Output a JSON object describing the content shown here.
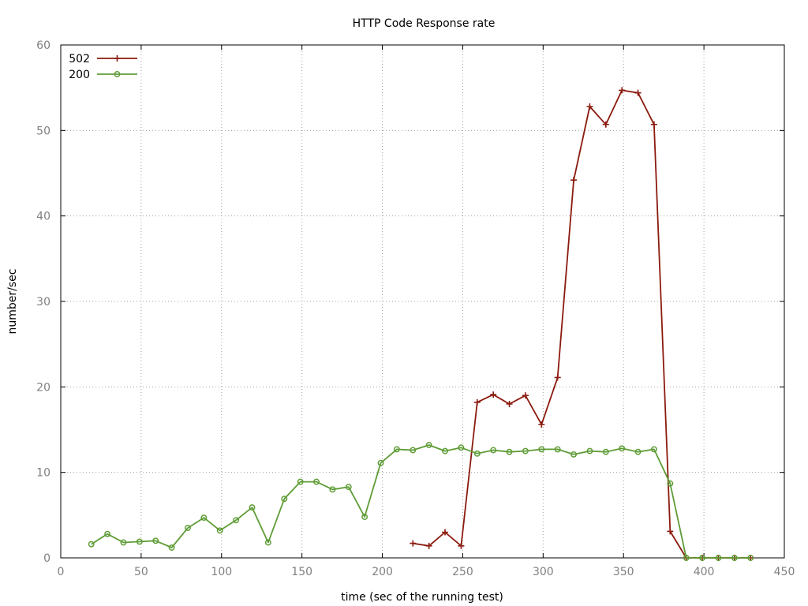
{
  "chart_data": {
    "type": "line",
    "title": "HTTP Code Response rate",
    "xlabel": "time (sec of the running test)",
    "ylabel": "number/sec",
    "xlim": [
      0,
      450
    ],
    "ylim": [
      0,
      60
    ],
    "xticks": [
      0,
      50,
      100,
      150,
      200,
      250,
      300,
      350,
      400,
      450
    ],
    "yticks": [
      0,
      10,
      20,
      30,
      40,
      50,
      60
    ],
    "grid": true,
    "legend_position": "top-left",
    "series": [
      {
        "name": "502",
        "color": "#8b1a0e",
        "marker": "plus",
        "x": [
          219,
          229,
          239,
          249,
          259,
          269,
          279,
          289,
          299,
          309,
          319,
          329,
          339,
          349,
          359,
          369,
          379,
          389,
          399,
          409,
          419,
          429
        ],
        "y": [
          1.7,
          1.4,
          3.0,
          1.4,
          18.2,
          19.1,
          18.0,
          19.0,
          15.6,
          21.1,
          44.2,
          52.8,
          50.7,
          54.7,
          54.4,
          50.7,
          3.1,
          0.0,
          0.0,
          0.0,
          0.0,
          0.0
        ]
      },
      {
        "name": "200",
        "color": "#5e9c36",
        "marker": "circle",
        "x": [
          19,
          29,
          39,
          49,
          59,
          69,
          79,
          89,
          99,
          109,
          119,
          129,
          139,
          149,
          159,
          169,
          179,
          189,
          199,
          209,
          219,
          229,
          239,
          249,
          259,
          269,
          279,
          289,
          299,
          309,
          319,
          329,
          339,
          349,
          359,
          369,
          379,
          389,
          399,
          409,
          419,
          429
        ],
        "y": [
          1.6,
          2.8,
          1.8,
          1.9,
          2.0,
          1.2,
          3.5,
          4.7,
          3.2,
          4.4,
          5.9,
          1.8,
          6.9,
          8.9,
          8.9,
          8.0,
          8.3,
          4.8,
          11.1,
          12.7,
          12.6,
          13.2,
          12.5,
          12.9,
          12.2,
          12.6,
          12.4,
          12.5,
          12.7,
          12.7,
          12.1,
          12.5,
          12.4,
          12.8,
          12.4,
          12.7,
          8.7,
          0.0,
          0.0,
          0.0,
          0.0,
          0.0
        ]
      }
    ]
  }
}
